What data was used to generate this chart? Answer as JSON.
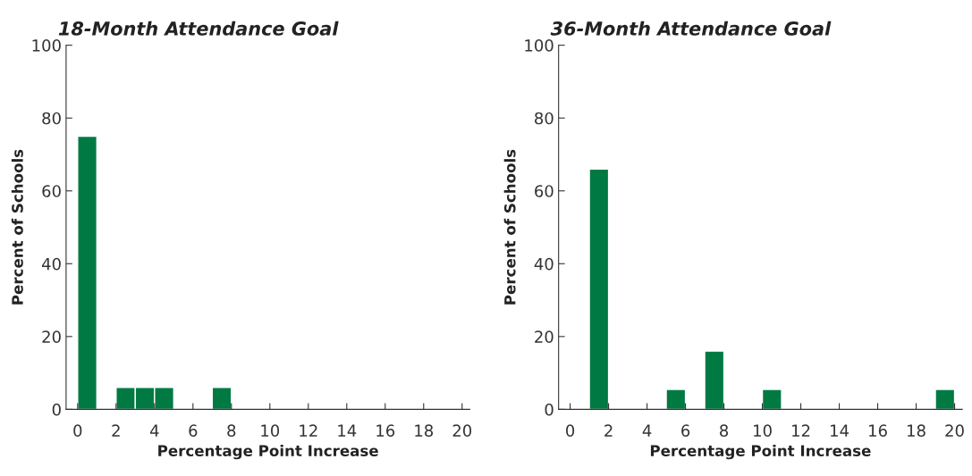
{
  "chart_data": [
    {
      "type": "histogram",
      "title": "18-Month Attendance Goal",
      "xlabel": "Percentage Point Increase",
      "ylabel": "Percent of Schools",
      "bins": [
        0,
        1,
        2,
        3,
        4,
        5,
        6,
        7,
        8
      ],
      "values": [
        75,
        0,
        6,
        6,
        6,
        0,
        0,
        6
      ],
      "color": "#007a42",
      "xlim": [
        -0.6,
        20.4
      ],
      "xticks": [
        0,
        2,
        4,
        6,
        8,
        10,
        12,
        14,
        16,
        18,
        20
      ],
      "ylim": [
        0,
        100
      ],
      "yticks": [
        0,
        20,
        40,
        60,
        80,
        100
      ],
      "grid": false,
      "legend": false
    },
    {
      "type": "histogram",
      "title": "36-Month Attendance Goal",
      "xlabel": "Percentage Point Increase",
      "ylabel": "Percent of Schools",
      "bins": [
        1,
        2,
        3,
        4,
        5,
        6,
        7,
        8,
        9,
        10,
        11,
        12,
        13,
        14,
        15,
        16,
        17,
        18,
        19,
        20
      ],
      "values": [
        66,
        0,
        0,
        0,
        5.5,
        0,
        16,
        0,
        0,
        5.5,
        0,
        0,
        0,
        0,
        0,
        0,
        0,
        0,
        5.5
      ],
      "color": "#007a42",
      "xlim": [
        -0.6,
        20.4
      ],
      "xticks": [
        0,
        2,
        4,
        6,
        8,
        10,
        12,
        14,
        16,
        18,
        20
      ],
      "ylim": [
        0,
        100
      ],
      "yticks": [
        0,
        20,
        40,
        60,
        80,
        100
      ],
      "grid": false,
      "legend": false
    }
  ]
}
